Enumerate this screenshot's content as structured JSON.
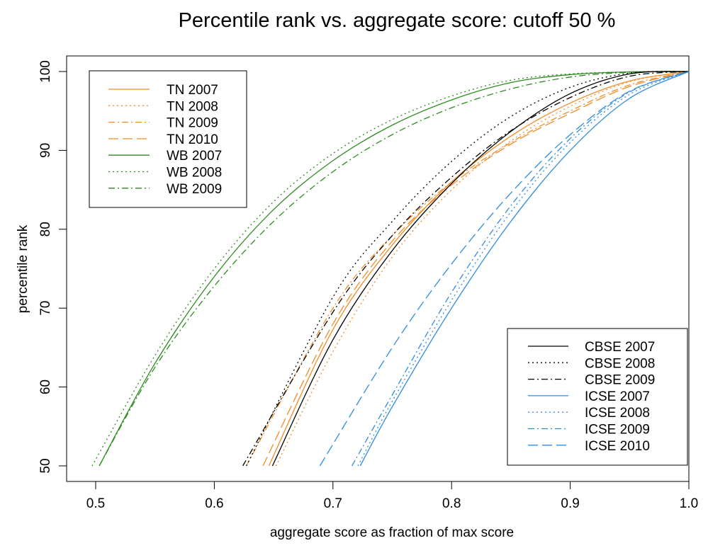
{
  "chart_data": {
    "type": "line",
    "title": "Percentile rank vs. aggregate score: cutoff  50 %",
    "xlabel": "aggregate score as fraction of max score",
    "ylabel": "percentile rank",
    "xlim": [
      0.5,
      1.0
    ],
    "ylim": [
      50,
      100
    ],
    "xticks": [
      "0.5",
      "0.6",
      "0.7",
      "0.8",
      "0.9",
      "1.0"
    ],
    "yticks": [
      "50",
      "60",
      "70",
      "80",
      "90",
      "100"
    ],
    "grid": false,
    "legends": [
      {
        "position": "top-left",
        "entries": [
          "TN 2007",
          "TN 2008",
          "TN 2009",
          "TN 2010",
          "WB 2007",
          "WB 2008",
          "WB 2009"
        ]
      },
      {
        "position": "bottom-right",
        "entries": [
          "CBSE 2007",
          "CBSE 2008",
          "CBSE 2009",
          "ICSE 2007",
          "ICSE 2008",
          "ICSE 2009",
          "ICSE 2010"
        ]
      }
    ],
    "colors": {
      "TN": "#F28C28",
      "WB": "#2E8B20",
      "CBSE": "#000000",
      "ICSE": "#2F8CE0"
    },
    "series": [
      {
        "name": "TN 2007",
        "color": "#F28C28",
        "dash": "solid",
        "x": [
          0.646,
          0.7,
          0.75,
          0.8,
          0.85,
          0.9,
          0.95,
          1.0
        ],
        "y": [
          50,
          67.3,
          78.0,
          86.0,
          91.8,
          96.0,
          98.8,
          100
        ]
      },
      {
        "name": "TN 2008",
        "color": "#F28C28",
        "dash": "dotted",
        "x": [
          0.652,
          0.7,
          0.75,
          0.8,
          0.85,
          0.9,
          0.95,
          1.0
        ],
        "y": [
          50,
          64.5,
          76.5,
          85.0,
          91.2,
          95.6,
          98.7,
          100
        ]
      },
      {
        "name": "TN 2009",
        "color": "#F28C28",
        "dash": "dashdot",
        "x": [
          0.627,
          0.7,
          0.75,
          0.8,
          0.85,
          0.9,
          0.95,
          1.0
        ],
        "y": [
          50,
          70.0,
          79.2,
          86.0,
          91.0,
          95.0,
          98.3,
          100
        ]
      },
      {
        "name": "TN 2010",
        "color": "#F28C28",
        "dash": "longdash",
        "x": [
          0.641,
          0.7,
          0.75,
          0.8,
          0.85,
          0.9,
          0.95,
          1.0
        ],
        "y": [
          50,
          68.0,
          78.5,
          85.6,
          90.8,
          94.7,
          98.1,
          100
        ]
      },
      {
        "name": "WB 2007",
        "color": "#2E8B20",
        "dash": "solid",
        "x": [
          0.503,
          0.55,
          0.6,
          0.65,
          0.7,
          0.75,
          0.8,
          0.85,
          0.9,
          0.95,
          1.0
        ],
        "y": [
          50,
          63.0,
          74.0,
          82.5,
          88.7,
          93.2,
          96.4,
          98.6,
          99.6,
          99.95,
          100
        ]
      },
      {
        "name": "WB 2008",
        "color": "#2E8B20",
        "dash": "dotted",
        "x": [
          0.497,
          0.55,
          0.6,
          0.65,
          0.7,
          0.75,
          0.8,
          0.85,
          0.9,
          0.95,
          1.0
        ],
        "y": [
          50,
          64.0,
          75.0,
          83.5,
          89.6,
          93.9,
          96.9,
          98.9,
          99.7,
          99.95,
          100
        ]
      },
      {
        "name": "WB 2009",
        "color": "#2E8B20",
        "dash": "dashdot",
        "x": [
          0.503,
          0.55,
          0.6,
          0.65,
          0.7,
          0.75,
          0.8,
          0.85,
          0.9,
          0.95,
          1.0
        ],
        "y": [
          50,
          62.5,
          72.8,
          81.0,
          87.3,
          92.0,
          95.4,
          97.8,
          99.3,
          99.9,
          100
        ]
      },
      {
        "name": "CBSE 2007",
        "color": "#000000",
        "dash": "solid",
        "x": [
          0.649,
          0.7,
          0.75,
          0.8,
          0.85,
          0.9,
          0.95,
          1.0
        ],
        "y": [
          50,
          66.0,
          77.3,
          85.8,
          92.4,
          97.2,
          99.7,
          100
        ]
      },
      {
        "name": "CBSE 2008",
        "color": "#000000",
        "dash": "dotted",
        "x": [
          0.627,
          0.7,
          0.75,
          0.8,
          0.85,
          0.9,
          0.95,
          1.0
        ],
        "y": [
          50,
          71.4,
          81.0,
          88.6,
          94.3,
          98.0,
          99.8,
          100
        ]
      },
      {
        "name": "CBSE 2009",
        "color": "#000000",
        "dash": "dashdot",
        "x": [
          0.624,
          0.7,
          0.75,
          0.8,
          0.85,
          0.9,
          0.95,
          1.0
        ],
        "y": [
          50,
          69.5,
          79.2,
          86.6,
          92.5,
          96.7,
          99.4,
          100
        ]
      },
      {
        "name": "ICSE 2007",
        "color": "#2F8CE0",
        "dash": "solid",
        "x": [
          0.723,
          0.75,
          0.8,
          0.85,
          0.9,
          0.95,
          1.0
        ],
        "y": [
          50,
          57.5,
          70.0,
          81.0,
          90.0,
          96.6,
          100
        ]
      },
      {
        "name": "ICSE 2008",
        "color": "#2F8CE0",
        "dash": "dotted",
        "x": [
          0.721,
          0.75,
          0.8,
          0.85,
          0.9,
          0.95,
          1.0
        ],
        "y": [
          50,
          58.2,
          71.0,
          82.2,
          91.0,
          97.1,
          100
        ]
      },
      {
        "name": "ICSE 2009",
        "color": "#2F8CE0",
        "dash": "dashdot",
        "x": [
          0.716,
          0.75,
          0.8,
          0.85,
          0.9,
          0.95,
          1.0
        ],
        "y": [
          50,
          59.0,
          72.0,
          83.0,
          91.5,
          97.4,
          100
        ]
      },
      {
        "name": "ICSE 2010",
        "color": "#2F8CE0",
        "dash": "longdash",
        "x": [
          0.689,
          0.75,
          0.8,
          0.85,
          0.9,
          0.95,
          1.0
        ],
        "y": [
          50,
          65.0,
          75.6,
          84.6,
          92.0,
          97.5,
          100
        ]
      }
    ]
  }
}
